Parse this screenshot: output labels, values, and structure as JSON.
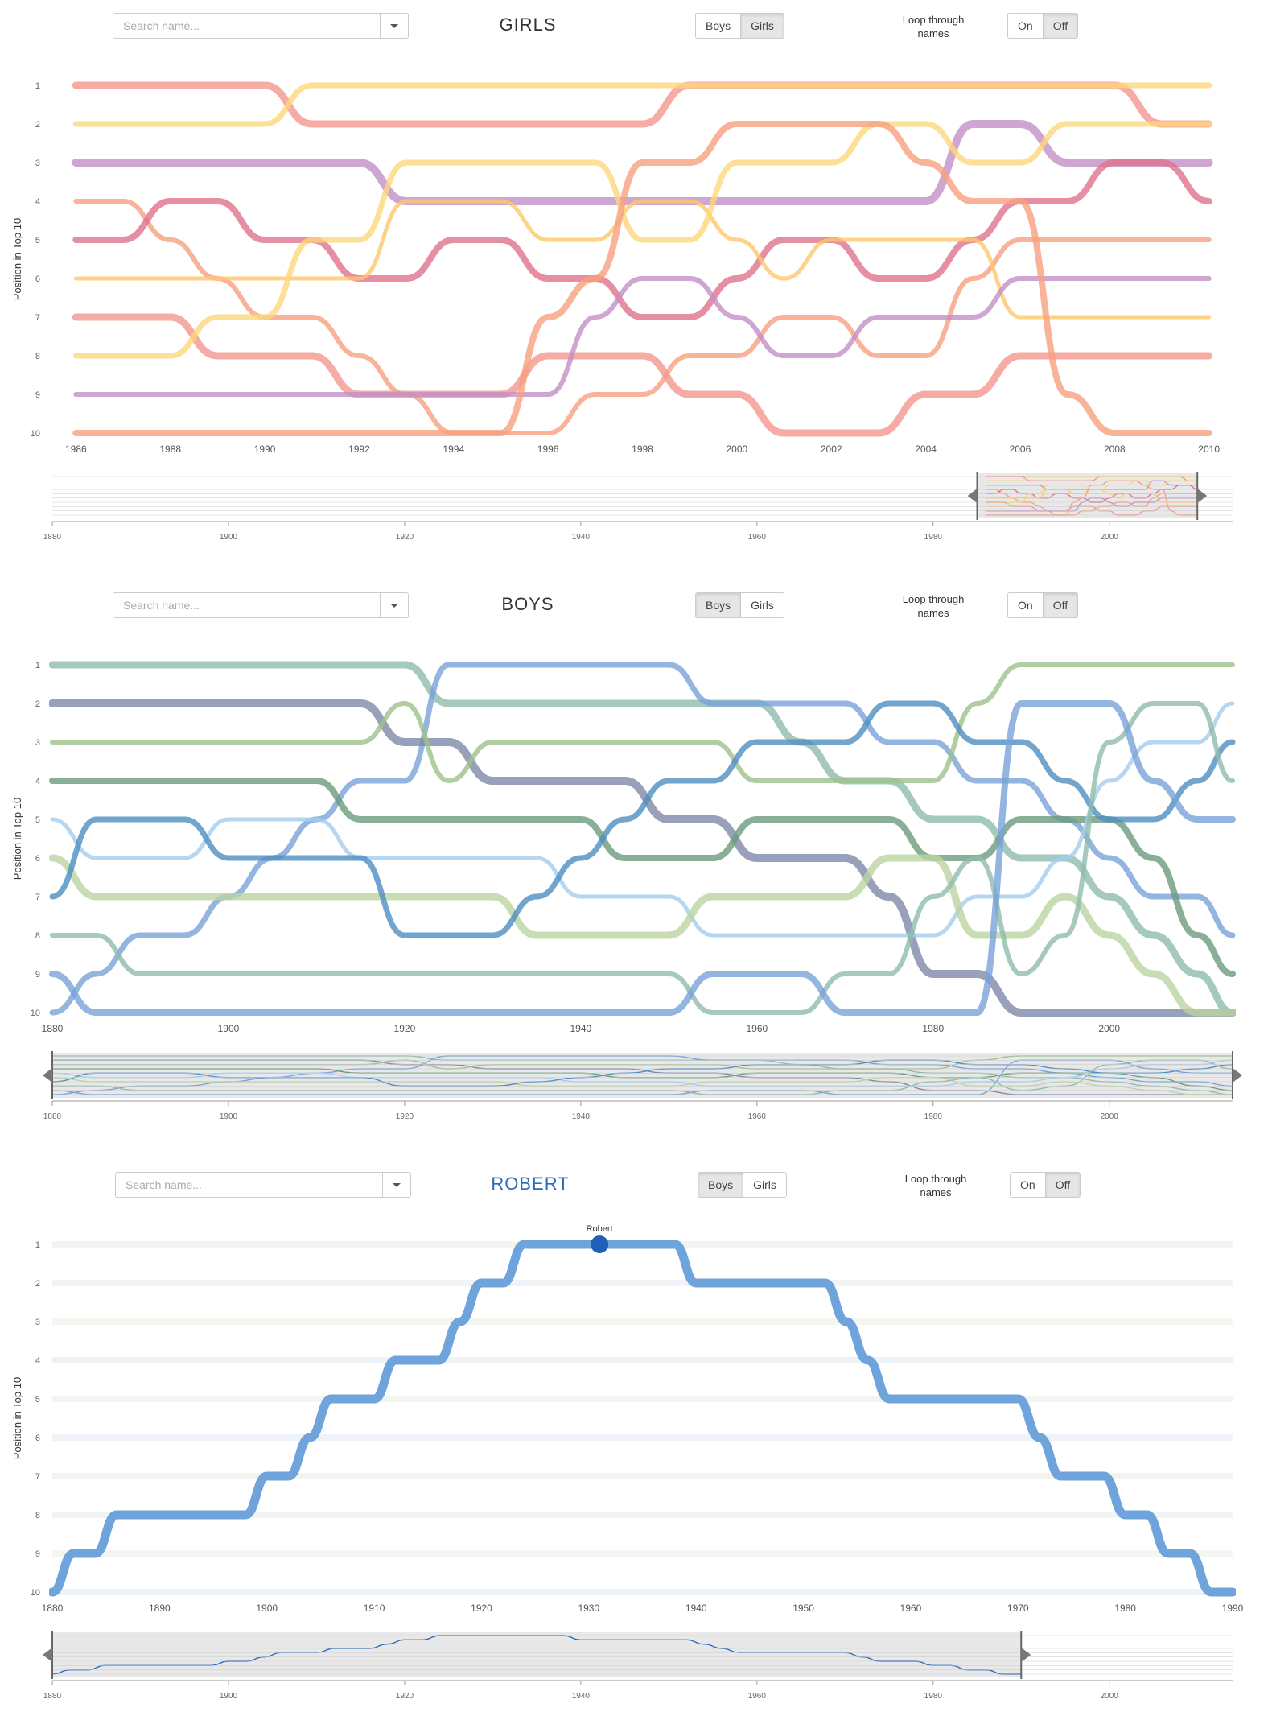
{
  "panels": [
    {
      "id": "girls",
      "title": "GIRLS",
      "title_color": "#333333",
      "search_placeholder": "Search name...",
      "gender_buttons": [
        "Boys",
        "Girls"
      ],
      "gender_active": 1,
      "loop_label_line1": "Loop through",
      "loop_label_line2": "names",
      "loop_buttons": [
        "On",
        "Off"
      ],
      "loop_active": 1,
      "highlight_label": "",
      "y_label": "Position in Top 10",
      "palette": [
        "#f4978e",
        "#fdd77a",
        "#c38fc6",
        "#f8a07e",
        "#e0728c",
        "#ffc76b"
      ],
      "main_x_range": [
        1985.5,
        2010.5
      ],
      "main_x_ticks": [
        1986,
        1988,
        1990,
        1992,
        1994,
        1996,
        1998,
        2000,
        2002,
        2004,
        2006,
        2008,
        2010
      ],
      "brush_x_range": [
        1880,
        2014
      ],
      "brush_x_ticks": [
        1880,
        1900,
        1920,
        1940,
        1960,
        1980,
        2000
      ],
      "brush_selection": [
        1985,
        2010
      ]
    },
    {
      "id": "boys",
      "title": "BOYS",
      "title_color": "#333333",
      "search_placeholder": "Search name...",
      "gender_buttons": [
        "Boys",
        "Girls"
      ],
      "gender_active": 0,
      "loop_label_line1": "Loop through",
      "loop_label_line2": "names",
      "loop_buttons": [
        "On",
        "Off"
      ],
      "loop_active": 1,
      "highlight_label": "",
      "y_label": "Position in Top 10",
      "palette": [
        "#8fbcac",
        "#78a3d8",
        "#7e8aa8",
        "#9ec28b",
        "#6c9b7c",
        "#a4cdef",
        "#bcd5a2",
        "#4f8fc2"
      ],
      "main_x_range": [
        1880,
        2014
      ],
      "main_x_ticks": [
        1880,
        1900,
        1920,
        1940,
        1960,
        1980,
        2000
      ],
      "brush_x_range": [
        1880,
        2014
      ],
      "brush_x_ticks": [
        1880,
        1900,
        1920,
        1940,
        1960,
        1980,
        2000
      ],
      "brush_selection": [
        1880,
        2014
      ]
    },
    {
      "id": "robert",
      "title": "ROBERT",
      "title_color": "#2a6ebb",
      "search_placeholder": "Search name...",
      "gender_buttons": [
        "Boys",
        "Girls"
      ],
      "gender_active": 0,
      "loop_label_line1": "Loop through",
      "loop_label_line2": "names",
      "loop_buttons": [
        "On",
        "Off"
      ],
      "loop_active": 1,
      "highlight_label": "Robert",
      "y_label": "Position in Top 10",
      "palette": [
        "#dfe6ee",
        "#e3eadf",
        "#e6e8ee",
        "#e9efe3",
        "#dde8f2",
        "#e8ece8"
      ],
      "main_x_range": [
        1880,
        1990
      ],
      "main_x_ticks": [
        1880,
        1890,
        1900,
        1910,
        1920,
        1930,
        1940,
        1950,
        1960,
        1970,
        1980,
        1990
      ],
      "brush_x_range": [
        1880,
        2014
      ],
      "brush_x_ticks": [
        1880,
        1900,
        1920,
        1940,
        1960,
        1980,
        2000
      ],
      "brush_selection": [
        1880,
        1990
      ]
    }
  ],
  "chart_data": [
    {
      "type": "line",
      "title": "GIRLS",
      "ylabel": "Position in Top 10",
      "xlim": [
        1985.5,
        2010.5
      ],
      "ylim": [
        1,
        10
      ],
      "y_ticks": [
        1,
        2,
        3,
        4,
        5,
        6,
        7,
        8,
        9,
        10
      ],
      "x": [
        1986,
        1987,
        1988,
        1989,
        1990,
        1991,
        1992,
        1993,
        1994,
        1995,
        1996,
        1997,
        1998,
        1999,
        2000,
        2001,
        2002,
        2003,
        2004,
        2005,
        2006,
        2007,
        2008,
        2009,
        2010
      ],
      "series": [
        {
          "values": [
            1,
            1,
            1,
            1,
            1,
            2,
            2,
            2,
            2,
            2,
            2,
            2,
            2,
            1,
            1,
            1,
            1,
            1,
            1,
            1,
            1,
            1,
            1,
            2,
            2
          ]
        },
        {
          "values": [
            2,
            2,
            2,
            2,
            2,
            1,
            1,
            1,
            1,
            1,
            1,
            1,
            1,
            1,
            1,
            1,
            1,
            1,
            1,
            1,
            1,
            1,
            1,
            1,
            1
          ]
        },
        {
          "values": [
            3,
            3,
            3,
            3,
            3,
            3,
            3,
            4,
            4,
            4,
            4,
            4,
            4,
            4,
            4,
            4,
            4,
            4,
            4,
            2,
            2,
            3,
            3,
            3,
            3
          ]
        },
        {
          "values": [
            4,
            4,
            5,
            6,
            7,
            7,
            8,
            9,
            10,
            10,
            10,
            9,
            9,
            8,
            8,
            7,
            7,
            8,
            8,
            6,
            5,
            5,
            5,
            5,
            5
          ]
        },
        {
          "values": [
            5,
            5,
            4,
            4,
            5,
            5,
            6,
            6,
            5,
            5,
            6,
            6,
            7,
            7,
            6,
            5,
            5,
            6,
            6,
            5,
            4,
            4,
            3,
            3,
            4
          ]
        },
        {
          "values": [
            6,
            6,
            6,
            6,
            6,
            6,
            6,
            4,
            4,
            4,
            5,
            5,
            4,
            4,
            5,
            6,
            5,
            5,
            5,
            5,
            7,
            7,
            7,
            7,
            7
          ]
        },
        {
          "values": [
            7,
            7,
            7,
            8,
            8,
            8,
            9,
            9,
            9,
            9,
            8,
            8,
            8,
            9,
            9,
            10,
            10,
            10,
            9,
            9,
            8,
            8,
            8,
            8,
            8
          ]
        },
        {
          "values": [
            8,
            8,
            8,
            7,
            7,
            5,
            5,
            3,
            3,
            3,
            3,
            3,
            5,
            5,
            3,
            3,
            3,
            2,
            2,
            3,
            3,
            2,
            2,
            2,
            2
          ]
        },
        {
          "values": [
            9,
            9,
            9,
            9,
            9,
            9,
            9,
            9,
            9,
            9,
            9,
            7,
            6,
            6,
            7,
            8,
            8,
            7,
            7,
            7,
            6,
            6,
            6,
            6,
            6
          ]
        },
        {
          "values": [
            10,
            10,
            10,
            10,
            10,
            10,
            10,
            10,
            10,
            10,
            7,
            6,
            3,
            3,
            2,
            2,
            2,
            2,
            3,
            4,
            4,
            9,
            10,
            10,
            10
          ]
        }
      ]
    },
    {
      "type": "line",
      "title": "BOYS",
      "ylabel": "Position in Top 10",
      "xlim": [
        1880,
        2014
      ],
      "ylim": [
        1,
        10
      ],
      "y_ticks": [
        1,
        2,
        3,
        4,
        5,
        6,
        7,
        8,
        9,
        10
      ],
      "x": [
        1880,
        1885,
        1890,
        1895,
        1900,
        1905,
        1910,
        1915,
        1920,
        1925,
        1930,
        1935,
        1940,
        1945,
        1950,
        1955,
        1960,
        1965,
        1970,
        1975,
        1980,
        1985,
        1990,
        1995,
        2000,
        2005,
        2010,
        2014
      ],
      "series": [
        {
          "values": [
            1,
            1,
            1,
            1,
            1,
            1,
            1,
            1,
            1,
            2,
            2,
            2,
            2,
            2,
            2,
            2,
            2,
            3,
            4,
            4,
            5,
            5,
            6,
            6,
            7,
            8,
            9,
            10
          ]
        },
        {
          "values": [
            10,
            9,
            8,
            8,
            7,
            6,
            5,
            4,
            4,
            1,
            1,
            1,
            1,
            1,
            1,
            2,
            2,
            2,
            2,
            3,
            3,
            4,
            4,
            5,
            6,
            7,
            7,
            8
          ]
        },
        {
          "values": [
            2,
            2,
            2,
            2,
            2,
            2,
            2,
            2,
            3,
            3,
            4,
            4,
            4,
            4,
            5,
            5,
            6,
            6,
            6,
            7,
            9,
            9,
            10,
            10,
            10,
            10,
            10,
            10
          ]
        },
        {
          "values": [
            3,
            3,
            3,
            3,
            3,
            3,
            3,
            3,
            2,
            4,
            3,
            3,
            3,
            3,
            3,
            3,
            4,
            4,
            4,
            4,
            4,
            2,
            1,
            1,
            1,
            1,
            1,
            1
          ]
        },
        {
          "values": [
            4,
            4,
            4,
            4,
            4,
            4,
            4,
            5,
            5,
            5,
            5,
            5,
            5,
            6,
            6,
            6,
            5,
            5,
            5,
            5,
            6,
            6,
            5,
            5,
            5,
            6,
            8,
            9
          ]
        },
        {
          "values": [
            5,
            6,
            6,
            6,
            5,
            5,
            5,
            6,
            6,
            6,
            6,
            6,
            7,
            7,
            7,
            8,
            8,
            8,
            8,
            8,
            8,
            7,
            7,
            6,
            4,
            3,
            3,
            2
          ]
        },
        {
          "values": [
            6,
            7,
            7,
            7,
            7,
            7,
            7,
            7,
            7,
            7,
            7,
            8,
            8,
            8,
            8,
            7,
            7,
            7,
            7,
            6,
            6,
            8,
            8,
            7,
            8,
            9,
            10,
            10
          ]
        },
        {
          "values": [
            7,
            5,
            5,
            5,
            6,
            6,
            6,
            6,
            8,
            8,
            8,
            7,
            6,
            5,
            4,
            4,
            3,
            3,
            3,
            2,
            2,
            3,
            3,
            4,
            5,
            5,
            4,
            3
          ]
        },
        {
          "values": [
            8,
            8,
            9,
            9,
            9,
            9,
            9,
            9,
            9,
            9,
            9,
            9,
            9,
            9,
            9,
            10,
            10,
            10,
            9,
            9,
            7,
            6,
            9,
            8,
            3,
            2,
            2,
            4
          ]
        },
        {
          "values": [
            9,
            10,
            10,
            10,
            10,
            10,
            10,
            10,
            10,
            10,
            10,
            10,
            10,
            10,
            10,
            9,
            9,
            9,
            10,
            10,
            10,
            10,
            2,
            2,
            2,
            4,
            5,
            5
          ]
        }
      ]
    },
    {
      "type": "line",
      "title": "ROBERT",
      "ylabel": "Position in Top 10",
      "xlim": [
        1880,
        1990
      ],
      "ylim": [
        1,
        10
      ],
      "y_ticks": [
        1,
        2,
        3,
        4,
        5,
        6,
        7,
        8,
        9,
        10
      ],
      "highlight_series": "Robert",
      "highlight_point": {
        "x": 1931,
        "y": 1
      },
      "x": [
        1880,
        1882,
        1884,
        1886,
        1888,
        1890,
        1892,
        1894,
        1896,
        1898,
        1900,
        1902,
        1904,
        1906,
        1908,
        1910,
        1912,
        1914,
        1916,
        1918,
        1920,
        1922,
        1924,
        1926,
        1928,
        1930,
        1932,
        1934,
        1936,
        1938,
        1940,
        1942,
        1944,
        1946,
        1948,
        1950,
        1952,
        1954,
        1956,
        1958,
        1960,
        1962,
        1964,
        1966,
        1968,
        1970,
        1972,
        1974,
        1976,
        1978,
        1980,
        1982,
        1984,
        1986,
        1988,
        1990
      ],
      "series": [
        {
          "name": "Robert",
          "values": [
            10,
            9,
            9,
            8,
            8,
            8,
            8,
            8,
            8,
            8,
            7,
            7,
            6,
            5,
            5,
            5,
            4,
            4,
            4,
            3,
            2,
            2,
            1,
            1,
            1,
            1,
            1,
            1,
            1,
            1,
            2,
            2,
            2,
            2,
            2,
            2,
            2,
            3,
            4,
            5,
            5,
            5,
            5,
            5,
            5,
            5,
            6,
            7,
            7,
            7,
            8,
            8,
            9,
            9,
            10,
            10
          ]
        }
      ]
    }
  ]
}
